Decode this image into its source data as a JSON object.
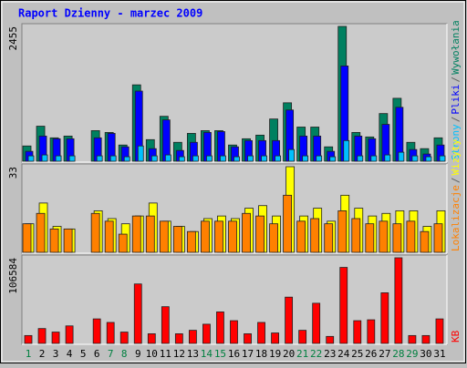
{
  "chart_data": {
    "type": "bar",
    "title": "Raport Dzienny -  marzec 2009",
    "categories": [
      "1",
      "2",
      "3",
      "4",
      "5",
      "6",
      "7",
      "8",
      "9",
      "10",
      "11",
      "12",
      "13",
      "14",
      "15",
      "16",
      "17",
      "18",
      "19",
      "20",
      "21",
      "22",
      "23",
      "24",
      "25",
      "26",
      "27",
      "28",
      "29",
      "30",
      "31"
    ],
    "category_colors": [
      "#008040",
      "#000000",
      "#000000",
      "#000000",
      "#000000",
      "#000000",
      "#008040",
      "#008040",
      "#000000",
      "#000000",
      "#000000",
      "#000000",
      "#000000",
      "#008040",
      "#008040",
      "#000000",
      "#000000",
      "#000000",
      "#000000",
      "#000000",
      "#008040",
      "#008040",
      "#000000",
      "#000000",
      "#000000",
      "#000000",
      "#000000",
      "#008040",
      "#008040",
      "#000000",
      "#000000"
    ],
    "legend_separator": "/",
    "panels": [
      {
        "ylim": [
          0,
          2455
        ],
        "yticks": [
          2455
        ],
        "series": [
          {
            "name": "Wywołania",
            "color": "#008060",
            "values": [
              278,
              638,
              426,
              458,
              0,
              557,
              524,
              295,
              1391,
              393,
              818,
              344,
              507,
              557,
              557,
              295,
              409,
              475,
              769,
              1064,
              622,
              622,
              262,
              2455,
              524,
              442,
              868,
              1146,
              344,
              229,
              426
            ]
          },
          {
            "name": "Pliki",
            "color": "#0000ff",
            "values": [
              180,
              458,
              409,
              409,
              0,
              426,
              507,
              262,
              1277,
              229,
              753,
              196,
              344,
              524,
              540,
              262,
              376,
              376,
              376,
              933,
              458,
              458,
              180,
              1735,
              458,
              409,
              671,
              982,
              213,
              131,
              295
            ]
          },
          {
            "name": "Strony",
            "color": "#00c0ff",
            "values": [
              98,
              115,
              98,
              98,
              0,
              98,
              98,
              82,
              278,
              98,
              115,
              82,
              98,
              98,
              98,
              82,
              98,
              98,
              98,
              213,
              98,
              98,
              82,
              376,
              98,
              98,
              115,
              164,
              98,
              82,
              98
            ]
          }
        ]
      },
      {
        "ylim": [
          0,
          33
        ],
        "yticks": [
          33
        ],
        "series": [
          {
            "name": "Wizyty",
            "color": "#ffff00",
            "values": [
              11,
              19,
              10,
              9,
              0,
              16,
              13,
              11,
              14,
              19,
              12,
              10,
              8,
              13,
              14,
              13,
              17,
              18,
              14,
              33,
              14,
              17,
              12,
              22,
              17,
              14,
              15,
              16,
              16,
              10,
              16
            ]
          },
          {
            "name": "Lokalizacje",
            "color": "#ff8000",
            "values": [
              11,
              15,
              9,
              9,
              0,
              15,
              12,
              7,
              14,
              14,
              12,
              10,
              8,
              12,
              12,
              12,
              15,
              14,
              11,
              22,
              12,
              13,
              11,
              16,
              13,
              11,
              12,
              11,
              12,
              8,
              11
            ]
          }
        ]
      },
      {
        "ylim": [
          0,
          106584
        ],
        "yticks": [
          106584
        ],
        "series": [
          {
            "name": "KB",
            "color": "#ff0000",
            "values": [
              9800,
              18500,
              14100,
              21800,
              0,
              30500,
              26100,
              14100,
              74000,
              12000,
              45700,
              12000,
              16300,
              23900,
              39200,
              28300,
              12000,
              26100,
              13000,
              57600,
              16300,
              50000,
              8700,
              94600,
              28300,
              29400,
              63000,
              106584,
              9800,
              9800,
              30500
            ]
          }
        ]
      }
    ]
  }
}
